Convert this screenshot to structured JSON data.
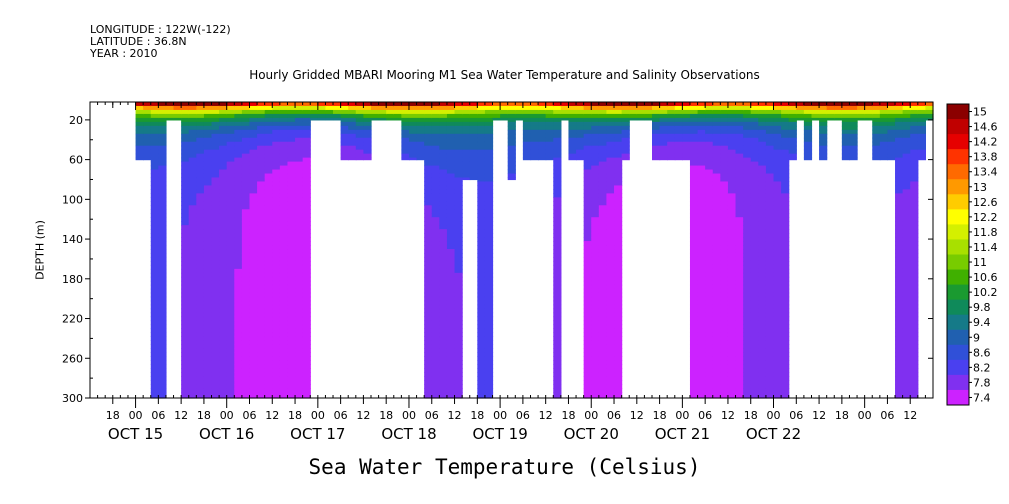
{
  "header": {
    "longitude": "LONGITUDE : 122W(-122)",
    "latitude": "LATITUDE : 36.8N",
    "year": "YEAR : 2010"
  },
  "chart_data": {
    "type": "heatmap",
    "title": "Hourly Gridded MBARI Mooring M1 Sea Water Temperature and Salinity Observations",
    "ylabel": "DEPTH (m)",
    "xlabel": "Sea Water Temperature (Celsius)",
    "yaxis": {
      "range": [
        300,
        2
      ],
      "inverted": true,
      "ticks": [
        20,
        60,
        100,
        140,
        180,
        220,
        260,
        300
      ]
    },
    "xaxis": {
      "range_hours": [
        -12,
        210
      ],
      "hour_ticks": [
        "18",
        "00",
        "06",
        "12",
        "18",
        "00",
        "06",
        "12",
        "18",
        "00",
        "06",
        "12",
        "18",
        "00",
        "06",
        "12",
        "18",
        "00",
        "06",
        "12",
        "18",
        "00",
        "06",
        "12",
        "18",
        "00",
        "06",
        "12",
        "18",
        "00",
        "06",
        "12",
        "18",
        "00",
        "06",
        "12"
      ],
      "day_labels": [
        "OCT 15",
        "OCT 16",
        "OCT 17",
        "OCT 18",
        "OCT 19",
        "OCT 20",
        "OCT 21",
        "OCT 22"
      ]
    },
    "colorbar": {
      "levels": [
        "15",
        "14.6",
        "14.2",
        "13.8",
        "13.4",
        "13",
        "12.6",
        "12.2",
        "11.8",
        "11.4",
        "11",
        "10.6",
        "10.2",
        "9.8",
        "9.4",
        "9",
        "8.6",
        "8.2",
        "7.8",
        "7.4"
      ],
      "min": 7.4,
      "max": 15.2
    },
    "depth_levels": [
      2,
      10,
      20,
      40,
      60,
      80,
      100,
      150,
      250,
      300
    ],
    "surface_temperature_range": [
      13.5,
      15.2
    ],
    "bottom_temperature_range": [
      7.4,
      8.2
    ],
    "coverage": [
      {
        "start": 0,
        "end": 4,
        "max_depth": 60
      },
      {
        "start": 4,
        "end": 8,
        "max_depth": 300
      },
      {
        "start": 8,
        "end": 12,
        "max_depth": 20
      },
      {
        "start": 12,
        "end": 20,
        "max_depth": 300
      },
      {
        "start": 20,
        "end": 32,
        "max_depth": 300
      },
      {
        "start": 32,
        "end": 40,
        "max_depth": 300
      },
      {
        "start": 40,
        "end": 46,
        "max_depth": 300
      },
      {
        "start": 46,
        "end": 54,
        "max_depth": 20
      },
      {
        "start": 54,
        "end": 62,
        "max_depth": 60
      },
      {
        "start": 62,
        "end": 70,
        "max_depth": 20
      },
      {
        "start": 70,
        "end": 76,
        "max_depth": 60
      },
      {
        "start": 76,
        "end": 86,
        "max_depth": 300
      },
      {
        "start": 86,
        "end": 90,
        "max_depth": 80
      },
      {
        "start": 90,
        "end": 94,
        "max_depth": 300
      },
      {
        "start": 94,
        "end": 98,
        "max_depth": 20
      },
      {
        "start": 98,
        "end": 100,
        "max_depth": 80
      },
      {
        "start": 100,
        "end": 102,
        "max_depth": 20
      },
      {
        "start": 102,
        "end": 110,
        "max_depth": 60
      },
      {
        "start": 110,
        "end": 112,
        "max_depth": 300
      },
      {
        "start": 112,
        "end": 114,
        "max_depth": 20
      },
      {
        "start": 114,
        "end": 118,
        "max_depth": 60
      },
      {
        "start": 118,
        "end": 128,
        "max_depth": 300
      },
      {
        "start": 128,
        "end": 130,
        "max_depth": 60
      },
      {
        "start": 130,
        "end": 136,
        "max_depth": 20
      },
      {
        "start": 136,
        "end": 146,
        "max_depth": 60
      },
      {
        "start": 146,
        "end": 152,
        "max_depth": 300
      },
      {
        "start": 152,
        "end": 158,
        "max_depth": 300
      },
      {
        "start": 158,
        "end": 172,
        "max_depth": 300
      },
      {
        "start": 172,
        "end": 174,
        "max_depth": 60
      },
      {
        "start": 174,
        "end": 176,
        "max_depth": 20
      },
      {
        "start": 176,
        "end": 178,
        "max_depth": 60
      },
      {
        "start": 178,
        "end": 180,
        "max_depth": 20
      },
      {
        "start": 180,
        "end": 182,
        "max_depth": 60
      },
      {
        "start": 182,
        "end": 186,
        "max_depth": 20
      },
      {
        "start": 186,
        "end": 190,
        "max_depth": 60
      },
      {
        "start": 190,
        "end": 194,
        "max_depth": 20
      },
      {
        "start": 194,
        "end": 200,
        "max_depth": 60
      },
      {
        "start": 200,
        "end": 206,
        "max_depth": 300
      },
      {
        "start": 206,
        "end": 208,
        "max_depth": 60
      },
      {
        "start": 208,
        "end": 210,
        "max_depth": 20
      }
    ]
  }
}
